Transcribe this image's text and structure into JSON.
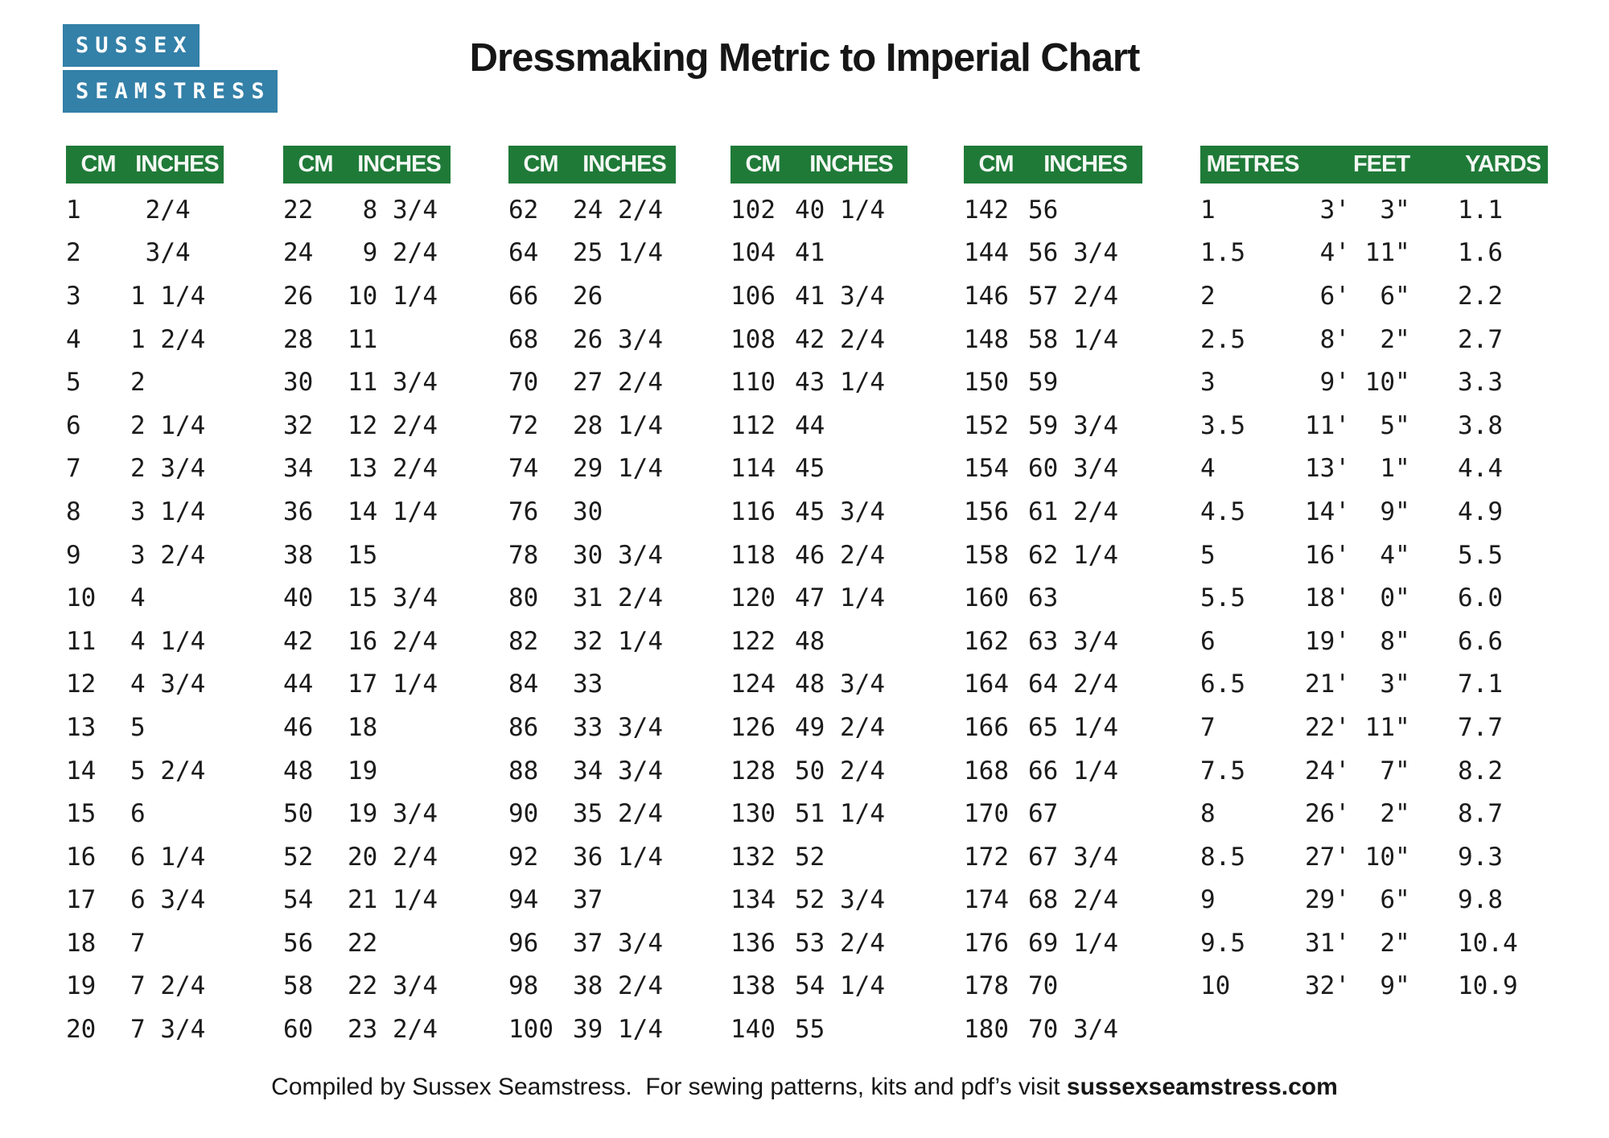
{
  "logo": {
    "line1": "SUSSEX",
    "line2": "SEAMSTRESS"
  },
  "title": "Dressmaking Metric to Imperial Chart",
  "colors": {
    "header_green": "#1f7a38",
    "logo_blue": "#3380a8"
  },
  "tables": [
    {
      "headers": [
        "CM",
        "INCHES"
      ],
      "rows": [
        [
          "1",
          " 2/4"
        ],
        [
          "2",
          " 3/4"
        ],
        [
          "3",
          "1 1/4"
        ],
        [
          "4",
          "1 2/4"
        ],
        [
          "5",
          "2"
        ],
        [
          "6",
          "2 1/4"
        ],
        [
          "7",
          "2 3/4"
        ],
        [
          "8",
          "3 1/4"
        ],
        [
          "9",
          "3 2/4"
        ],
        [
          "10",
          "4"
        ],
        [
          "11",
          "4 1/4"
        ],
        [
          "12",
          "4 3/4"
        ],
        [
          "13",
          "5"
        ],
        [
          "14",
          "5 2/4"
        ],
        [
          "15",
          "6"
        ],
        [
          "16",
          "6 1/4"
        ],
        [
          "17",
          "6 3/4"
        ],
        [
          "18",
          "7"
        ],
        [
          "19",
          "7 2/4"
        ],
        [
          "20",
          "7 3/4"
        ]
      ]
    },
    {
      "headers": [
        "CM",
        "INCHES"
      ],
      "rows": [
        [
          "22",
          " 8 3/4"
        ],
        [
          "24",
          " 9 2/4"
        ],
        [
          "26",
          "10 1/4"
        ],
        [
          "28",
          "11"
        ],
        [
          "30",
          "11 3/4"
        ],
        [
          "32",
          "12 2/4"
        ],
        [
          "34",
          "13 2/4"
        ],
        [
          "36",
          "14 1/4"
        ],
        [
          "38",
          "15"
        ],
        [
          "40",
          "15 3/4"
        ],
        [
          "42",
          "16 2/4"
        ],
        [
          "44",
          "17 1/4"
        ],
        [
          "46",
          "18"
        ],
        [
          "48",
          "19"
        ],
        [
          "50",
          "19 3/4"
        ],
        [
          "52",
          "20 2/4"
        ],
        [
          "54",
          "21 1/4"
        ],
        [
          "56",
          "22"
        ],
        [
          "58",
          "22 3/4"
        ],
        [
          "60",
          "23 2/4"
        ]
      ]
    },
    {
      "headers": [
        "CM",
        "INCHES"
      ],
      "rows": [
        [
          "62",
          "24 2/4"
        ],
        [
          "64",
          "25 1/4"
        ],
        [
          "66",
          "26"
        ],
        [
          "68",
          "26 3/4"
        ],
        [
          "70",
          "27 2/4"
        ],
        [
          "72",
          "28 1/4"
        ],
        [
          "74",
          "29 1/4"
        ],
        [
          "76",
          "30"
        ],
        [
          "78",
          "30 3/4"
        ],
        [
          "80",
          "31 2/4"
        ],
        [
          "82",
          "32 1/4"
        ],
        [
          "84",
          "33"
        ],
        [
          "86",
          "33 3/4"
        ],
        [
          "88",
          "34 3/4"
        ],
        [
          "90",
          "35 2/4"
        ],
        [
          "92",
          "36 1/4"
        ],
        [
          "94",
          "37"
        ],
        [
          "96",
          "37 3/4"
        ],
        [
          "98",
          "38 2/4"
        ],
        [
          "100",
          "39 1/4"
        ]
      ]
    },
    {
      "headers": [
        "CM",
        "INCHES"
      ],
      "rows": [
        [
          "102",
          "40 1/4"
        ],
        [
          "104",
          "41"
        ],
        [
          "106",
          "41 3/4"
        ],
        [
          "108",
          "42 2/4"
        ],
        [
          "110",
          "43 1/4"
        ],
        [
          "112",
          "44"
        ],
        [
          "114",
          "45"
        ],
        [
          "116",
          "45 3/4"
        ],
        [
          "118",
          "46 2/4"
        ],
        [
          "120",
          "47 1/4"
        ],
        [
          "122",
          "48"
        ],
        [
          "124",
          "48 3/4"
        ],
        [
          "126",
          "49 2/4"
        ],
        [
          "128",
          "50 2/4"
        ],
        [
          "130",
          "51 1/4"
        ],
        [
          "132",
          "52"
        ],
        [
          "134",
          "52 3/4"
        ],
        [
          "136",
          "53 2/4"
        ],
        [
          "138",
          "54 1/4"
        ],
        [
          "140",
          "55"
        ]
      ]
    },
    {
      "headers": [
        "CM",
        "INCHES"
      ],
      "rows": [
        [
          "142",
          "56"
        ],
        [
          "144",
          "56 3/4"
        ],
        [
          "146",
          "57 2/4"
        ],
        [
          "148",
          "58 1/4"
        ],
        [
          "150",
          "59"
        ],
        [
          "152",
          "59 3/4"
        ],
        [
          "154",
          "60 3/4"
        ],
        [
          "156",
          "61 2/4"
        ],
        [
          "158",
          "62 1/4"
        ],
        [
          "160",
          "63"
        ],
        [
          "162",
          "63 3/4"
        ],
        [
          "164",
          "64 2/4"
        ],
        [
          "166",
          "65 1/4"
        ],
        [
          "168",
          "66 1/4"
        ],
        [
          "170",
          "67"
        ],
        [
          "172",
          "67 3/4"
        ],
        [
          "174",
          "68 2/4"
        ],
        [
          "176",
          "69 1/4"
        ],
        [
          "178",
          "70"
        ],
        [
          "180",
          "70 3/4"
        ]
      ]
    },
    {
      "headers": [
        "METRES",
        "FEET",
        "YARDS"
      ],
      "rows": [
        [
          "1",
          " 3'  3\"",
          "1.1"
        ],
        [
          "1.5",
          " 4' 11\"",
          "1.6"
        ],
        [
          "2",
          " 6'  6\"",
          "2.2"
        ],
        [
          "2.5",
          " 8'  2\"",
          "2.7"
        ],
        [
          "3",
          " 9' 10\"",
          "3.3"
        ],
        [
          "3.5",
          "11'  5\"",
          "3.8"
        ],
        [
          "4",
          "13'  1\"",
          "4.4"
        ],
        [
          "4.5",
          "14'  9\"",
          "4.9"
        ],
        [
          "5",
          "16'  4\"",
          "5.5"
        ],
        [
          "5.5",
          "18'  0\"",
          "6.0"
        ],
        [
          "6",
          "19'  8\"",
          "6.6"
        ],
        [
          "6.5",
          "21'  3\"",
          "7.1"
        ],
        [
          "7",
          "22' 11\"",
          "7.7"
        ],
        [
          "7.5",
          "24'  7\"",
          "8.2"
        ],
        [
          "8",
          "26'  2\"",
          "8.7"
        ],
        [
          "8.5",
          "27' 10\"",
          "9.3"
        ],
        [
          "9",
          "29'  6\"",
          "9.8"
        ],
        [
          "9.5",
          "31'  2\"",
          "10.4"
        ],
        [
          "10",
          "32'  9\"",
          "10.9"
        ]
      ]
    }
  ],
  "footer": {
    "text": "Compiled by Sussex Seamstress.  For sewing patterns, kits and pdf’s visit ",
    "link": "sussexseamstress.com"
  }
}
